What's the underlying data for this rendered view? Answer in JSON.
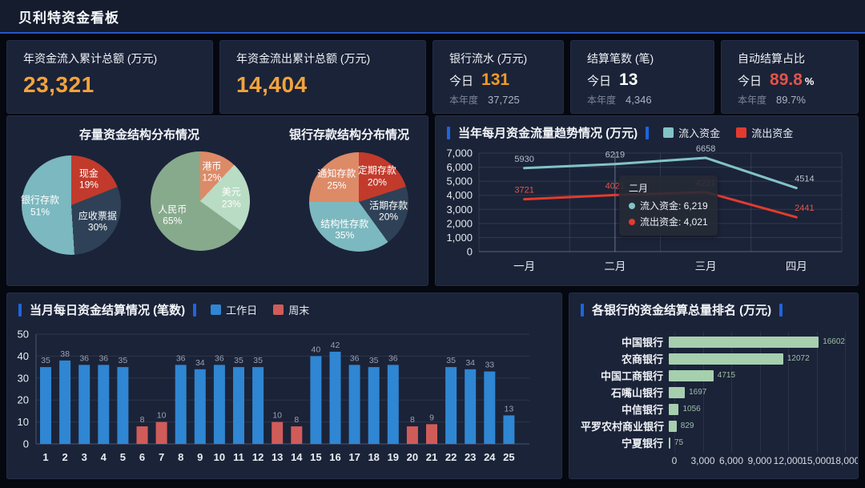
{
  "header": {
    "title": "贝利特资金看板"
  },
  "colors": {
    "header_line": "#2757c8",
    "accent_blue": "#1e65dd",
    "panel_bg": "#1b2338",
    "page_bg": "#05080f",
    "orange_value": "#f2a33c",
    "red_value": "#e0544a",
    "workday_blue": "#2f86d3",
    "weekend_red": "#d05c59",
    "hbar_green": "#a6cfae",
    "inflow_teal": "#82c3c8",
    "outflow_red": "#e23b2e"
  },
  "kpis": [
    {
      "label": "年资金流入累计总额 (万元)",
      "value": "23,321"
    },
    {
      "label": "年资金流出累计总额 (万元)",
      "value": "14,404"
    },
    {
      "label": "银行流水 (万元)",
      "today_label": "今日",
      "today_value": "131",
      "year_label": "本年度",
      "year_value": "37,725"
    },
    {
      "label": "结算笔数 (笔)",
      "today_label": "今日",
      "today_value": "13",
      "year_label": "本年度",
      "year_value": "4,346"
    },
    {
      "label": "自动结算占比",
      "today_label": "今日",
      "today_value": "89.8",
      "today_suffix": "%",
      "year_label": "本年度",
      "year_value": "89.7%"
    }
  ],
  "chart_data": [
    {
      "id": "stock-funds-pie",
      "type": "pie",
      "title": "存量资金结构分布情况",
      "slices": [
        {
          "label": "现金",
          "pct": 19,
          "color": "#c23a2b"
        },
        {
          "label": "应收票据",
          "pct": 30,
          "color": "#2e4157"
        },
        {
          "label": "银行存款",
          "pct": 51,
          "color": "#7cb8bf"
        }
      ]
    },
    {
      "id": "currency-pie",
      "type": "pie",
      "slices": [
        {
          "label": "港币",
          "pct": 12,
          "color": "#dd8a67"
        },
        {
          "label": "美元",
          "pct": 23,
          "color": "#b9dcc4"
        },
        {
          "label": "人民币",
          "pct": 65,
          "color": "#87aa8d"
        }
      ]
    },
    {
      "id": "deposit-structure-pie",
      "type": "pie",
      "title": "银行存款结构分布情况",
      "slices": [
        {
          "label": "定期存款",
          "pct": 20,
          "color": "#c23a2b"
        },
        {
          "label": "活期存款",
          "pct": 20,
          "color": "#2e4157"
        },
        {
          "label": "结构性存款",
          "pct": 35,
          "color": "#7cb8bf"
        },
        {
          "label": "通知存款",
          "pct": 25,
          "color": "#dd8a67"
        }
      ]
    },
    {
      "id": "monthly-flow-line",
      "type": "line",
      "title": "当年每月资金流量趋势情况 (万元)",
      "categories": [
        "一月",
        "二月",
        "三月",
        "四月"
      ],
      "series": [
        {
          "name": "流入资金",
          "color": "#82c3c8",
          "label_color": "#b4bfc9",
          "values": [
            5930,
            6219,
            6658,
            4514
          ]
        },
        {
          "name": "流出资金",
          "color": "#e23b2e",
          "label_color": "#e25549",
          "values": [
            3721,
            4021,
            4221,
            2441
          ]
        }
      ],
      "ylim": [
        0,
        7000
      ],
      "ytick_step": 1000,
      "ytick_labels": [
        "0",
        "1,000",
        "2,000",
        "3,000",
        "4,000",
        "5,000",
        "6,000",
        "7,000"
      ],
      "tooltip": {
        "title": "二月",
        "index": 1,
        "rows": [
          {
            "name": "流入资金",
            "value": "6,219"
          },
          {
            "name": "流出资金",
            "value": "4,021"
          }
        ]
      }
    },
    {
      "id": "daily-settlement-bar",
      "type": "bar",
      "title": "当月每日资金结算情况 (笔数)",
      "legend": [
        {
          "name": "工作日",
          "color": "#2f86d3"
        },
        {
          "name": "周末",
          "color": "#d05c59"
        }
      ],
      "categories": [
        1,
        2,
        3,
        4,
        5,
        6,
        7,
        8,
        9,
        10,
        11,
        12,
        13,
        14,
        15,
        16,
        17,
        18,
        19,
        20,
        21,
        22,
        23,
        24,
        25
      ],
      "values": [
        35,
        38,
        36,
        36,
        35,
        8,
        10,
        36,
        34,
        36,
        35,
        35,
        10,
        8,
        40,
        42,
        36,
        35,
        36,
        8,
        9,
        35,
        34,
        33,
        13
      ],
      "weekend_days": [
        6,
        7,
        13,
        14,
        20,
        21
      ],
      "ylim": [
        0,
        50
      ],
      "ytick_step": 10,
      "ytick_labels": [
        "0",
        "10",
        "20",
        "30",
        "40",
        "50"
      ]
    },
    {
      "id": "bank-ranking-hbar",
      "type": "hbar",
      "title": "各银行的资金结算总量排名 (万元)",
      "categories": [
        "中国银行",
        "农商银行",
        "中国工商银行",
        "石嘴山银行",
        "中信银行",
        "平罗农村商业银行",
        "宁夏银行"
      ],
      "values": [
        16602,
        12072,
        4715,
        1697,
        1056,
        829,
        75
      ],
      "bar_color": "#a6cfae",
      "xlim": [
        0,
        18000
      ],
      "xtick_labels": [
        "0",
        "3,000",
        "6,000",
        "9,000",
        "12,000",
        "15,000",
        "18,000"
      ]
    }
  ]
}
